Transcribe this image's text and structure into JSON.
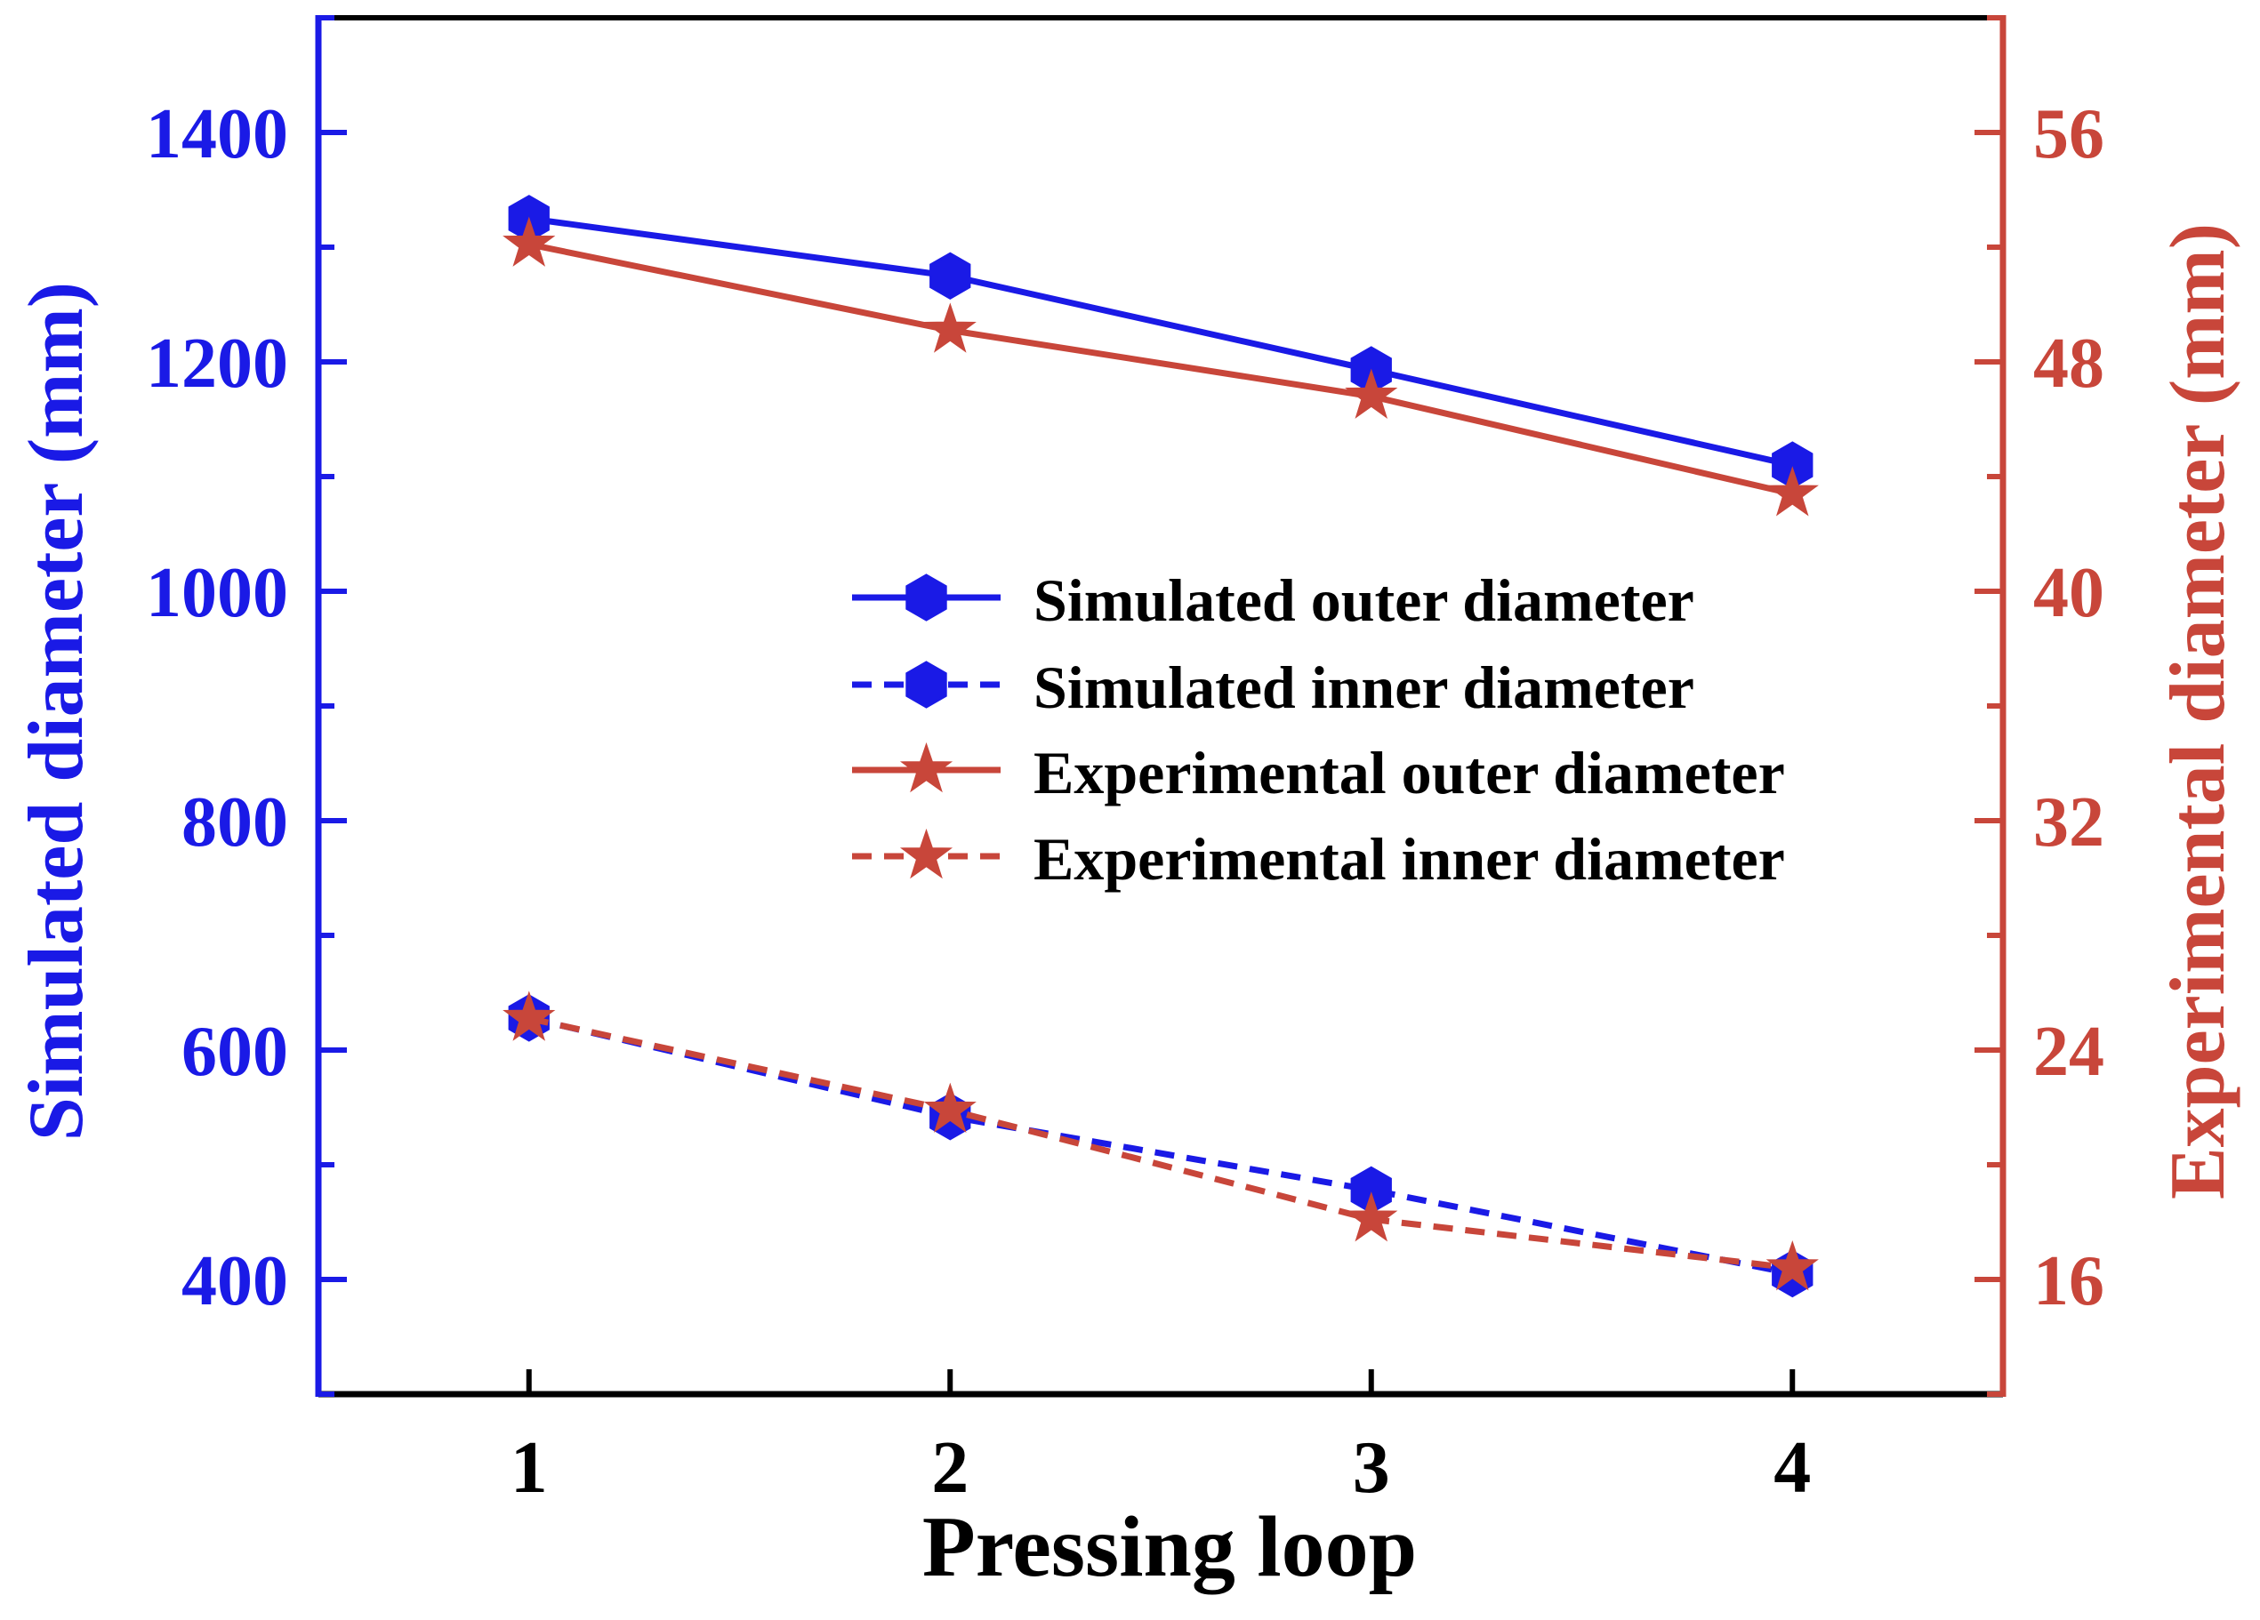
{
  "chart_data": {
    "type": "line",
    "x": [
      1,
      2,
      3,
      4
    ],
    "xlabel": "Pressing loop",
    "xlim": [
      0.5,
      4.5
    ],
    "x_ticks": [
      "1",
      "2",
      "3",
      "4"
    ],
    "y_left": {
      "label": "Simulated diameter (mm)",
      "lim": [
        300,
        1500
      ],
      "ticks": [
        "400",
        "600",
        "800",
        "1000",
        "1200",
        "1400"
      ],
      "color": "#1a1ae6"
    },
    "y_right": {
      "label": "Experimental  diameter (mm)",
      "lim": [
        12,
        60
      ],
      "ticks": [
        "16",
        "24",
        "32",
        "40",
        "48",
        "56"
      ],
      "color": "#c8463a"
    },
    "series": [
      {
        "name": "Simulated outer diameter",
        "axis": "left",
        "values": [
          1325,
          1275,
          1193,
          1110
        ],
        "color": "#1a1ae6",
        "dash": false,
        "marker": "hexagon"
      },
      {
        "name": "Simulated inner diameter",
        "axis": "left",
        "values": [
          628,
          542,
          478,
          405
        ],
        "color": "#1a1ae6",
        "dash": true,
        "marker": "hexagon"
      },
      {
        "name": "Experimental outer diameter",
        "axis": "right",
        "values": [
          52.1,
          49.1,
          46.8,
          43.4
        ],
        "color": "#c8463a",
        "dash": false,
        "marker": "star"
      },
      {
        "name": "Experimental inner diameter",
        "axis": "right",
        "values": [
          25.1,
          21.9,
          18.1,
          16.4
        ],
        "color": "#c8463a",
        "dash": true,
        "marker": "star"
      }
    ],
    "legend_position": "center-right"
  }
}
